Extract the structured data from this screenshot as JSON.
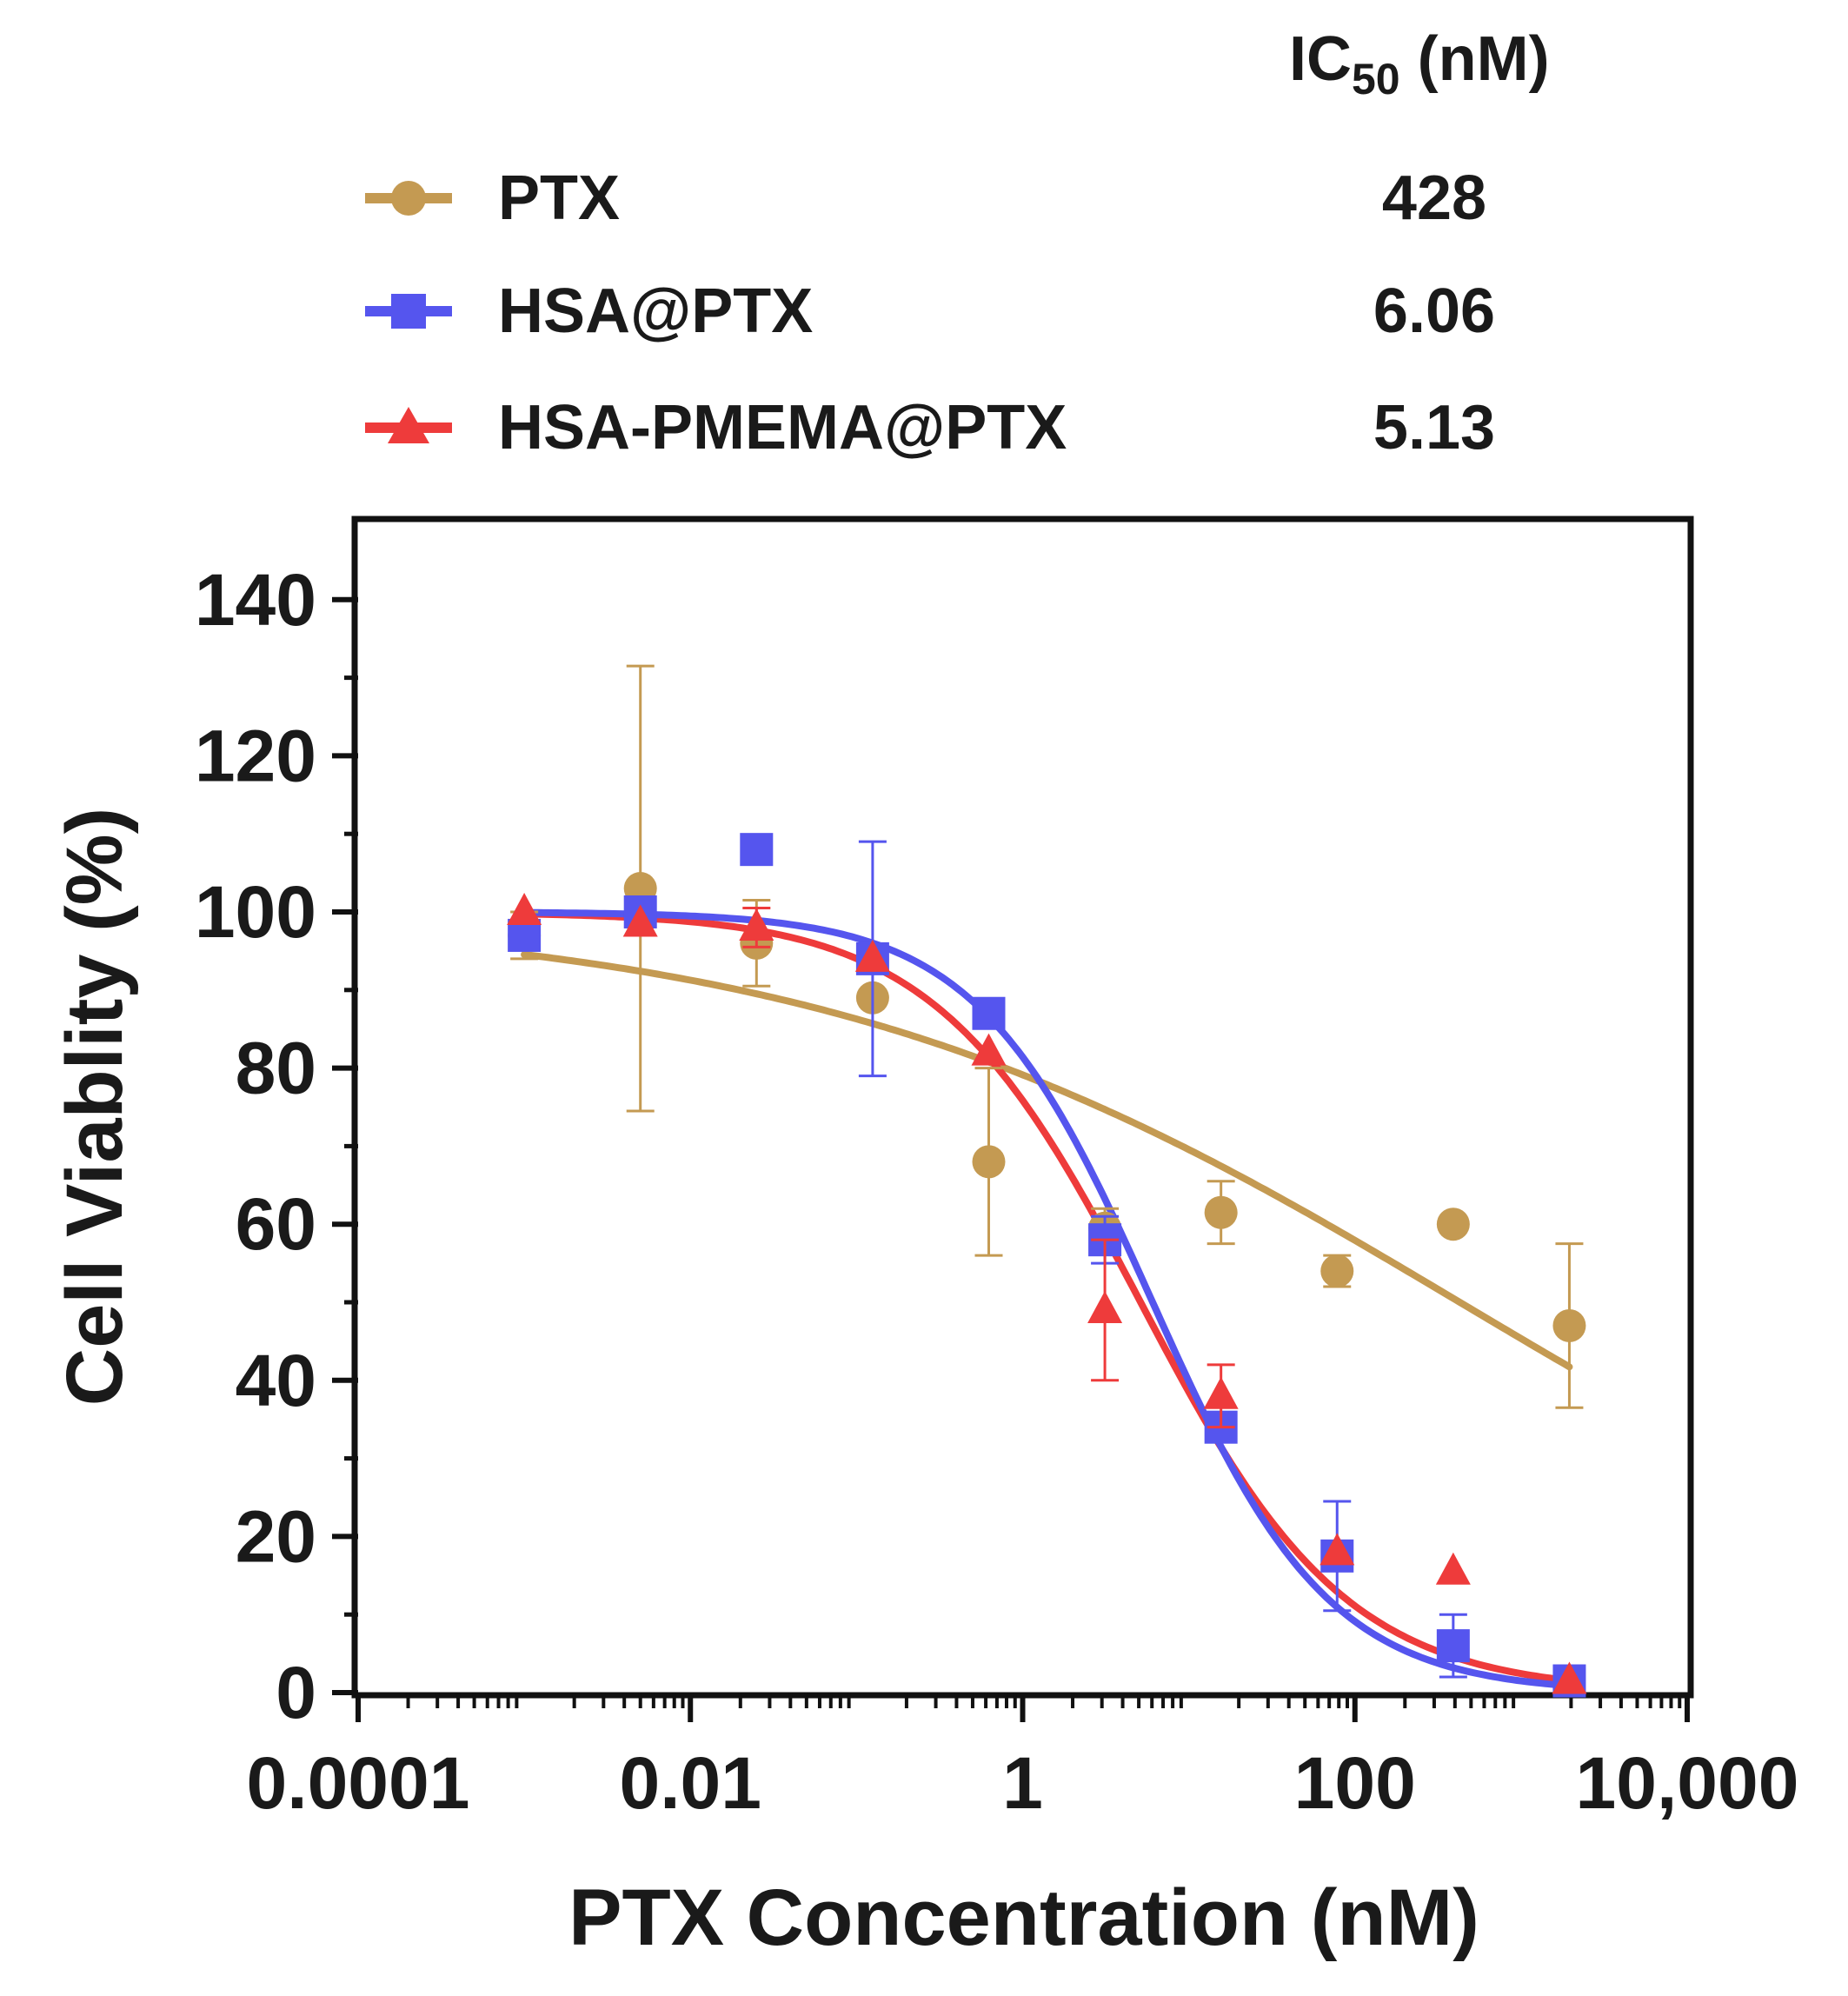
{
  "chart_data": {
    "type": "scatter",
    "title": "",
    "xlabel": "PTX Concentration (nM)",
    "ylabel": "Cell Viablity (%)",
    "x_scale": "log",
    "xlim": [
      0.0001,
      10000
    ],
    "ylim": [
      0,
      150
    ],
    "x_ticks": [
      0.0001,
      0.01,
      1,
      100,
      10000
    ],
    "x_tick_labels": [
      "0.0001",
      "0.01",
      "1",
      "100",
      "10,000"
    ],
    "y_ticks": [
      0,
      20,
      40,
      60,
      80,
      100,
      120,
      140
    ],
    "y_tick_labels": [
      "0",
      "20",
      "40",
      "60",
      "80",
      "100",
      "120",
      "140"
    ],
    "grid": false,
    "legend_position": "top",
    "ic50_header": {
      "main": "IC",
      "sub": "50",
      "rest": " (nM)"
    },
    "series": [
      {
        "name": "PTX",
        "ic50": "428",
        "color": "#c49a52",
        "marker": "circle",
        "x": [
          0.001,
          0.005,
          0.025,
          0.125,
          0.625,
          3.125,
          15.625,
          78.125,
          390.625,
          1953.125
        ],
        "y": [
          97,
          103,
          96,
          89,
          68,
          59.5,
          61.5,
          54,
          60,
          47
        ],
        "err": [
          3,
          28.5,
          5.5,
          0,
          12,
          2.5,
          4,
          2,
          0,
          10.5
        ],
        "fit": {
          "top": 100,
          "bottom": 0,
          "ic50": 428,
          "hill": 0.22
        }
      },
      {
        "name": "HSA@PTX",
        "ic50": "6.06",
        "color": "#5555ee",
        "marker": "square",
        "x": [
          0.001,
          0.005,
          0.025,
          0.125,
          0.625,
          3.125,
          15.625,
          78.125,
          390.625,
          1953.125
        ],
        "y": [
          97,
          100,
          108,
          94,
          87,
          58,
          34,
          17.5,
          6,
          1.5
        ],
        "err": [
          0,
          0,
          0,
          15,
          0,
          3,
          0,
          7,
          4,
          0
        ],
        "fit": {
          "top": 100,
          "bottom": 0,
          "ic50": 6.06,
          "hill": 0.82
        }
      },
      {
        "name": "HSA-PMEMA@PTX",
        "ic50": "5.13",
        "color": "#ee3b3b",
        "marker": "triangle",
        "x": [
          0.001,
          0.005,
          0.025,
          0.125,
          0.625,
          3.125,
          15.625,
          78.125,
          390.625,
          1953.125
        ],
        "y": [
          100,
          98.5,
          98,
          94,
          82,
          49,
          38,
          18,
          15.5,
          1.5
        ],
        "err": [
          0,
          0,
          2.5,
          0,
          0,
          9,
          4,
          0,
          0,
          0
        ],
        "fit": {
          "top": 100,
          "bottom": 0,
          "ic50": 5.13,
          "hill": 0.7
        }
      }
    ]
  }
}
